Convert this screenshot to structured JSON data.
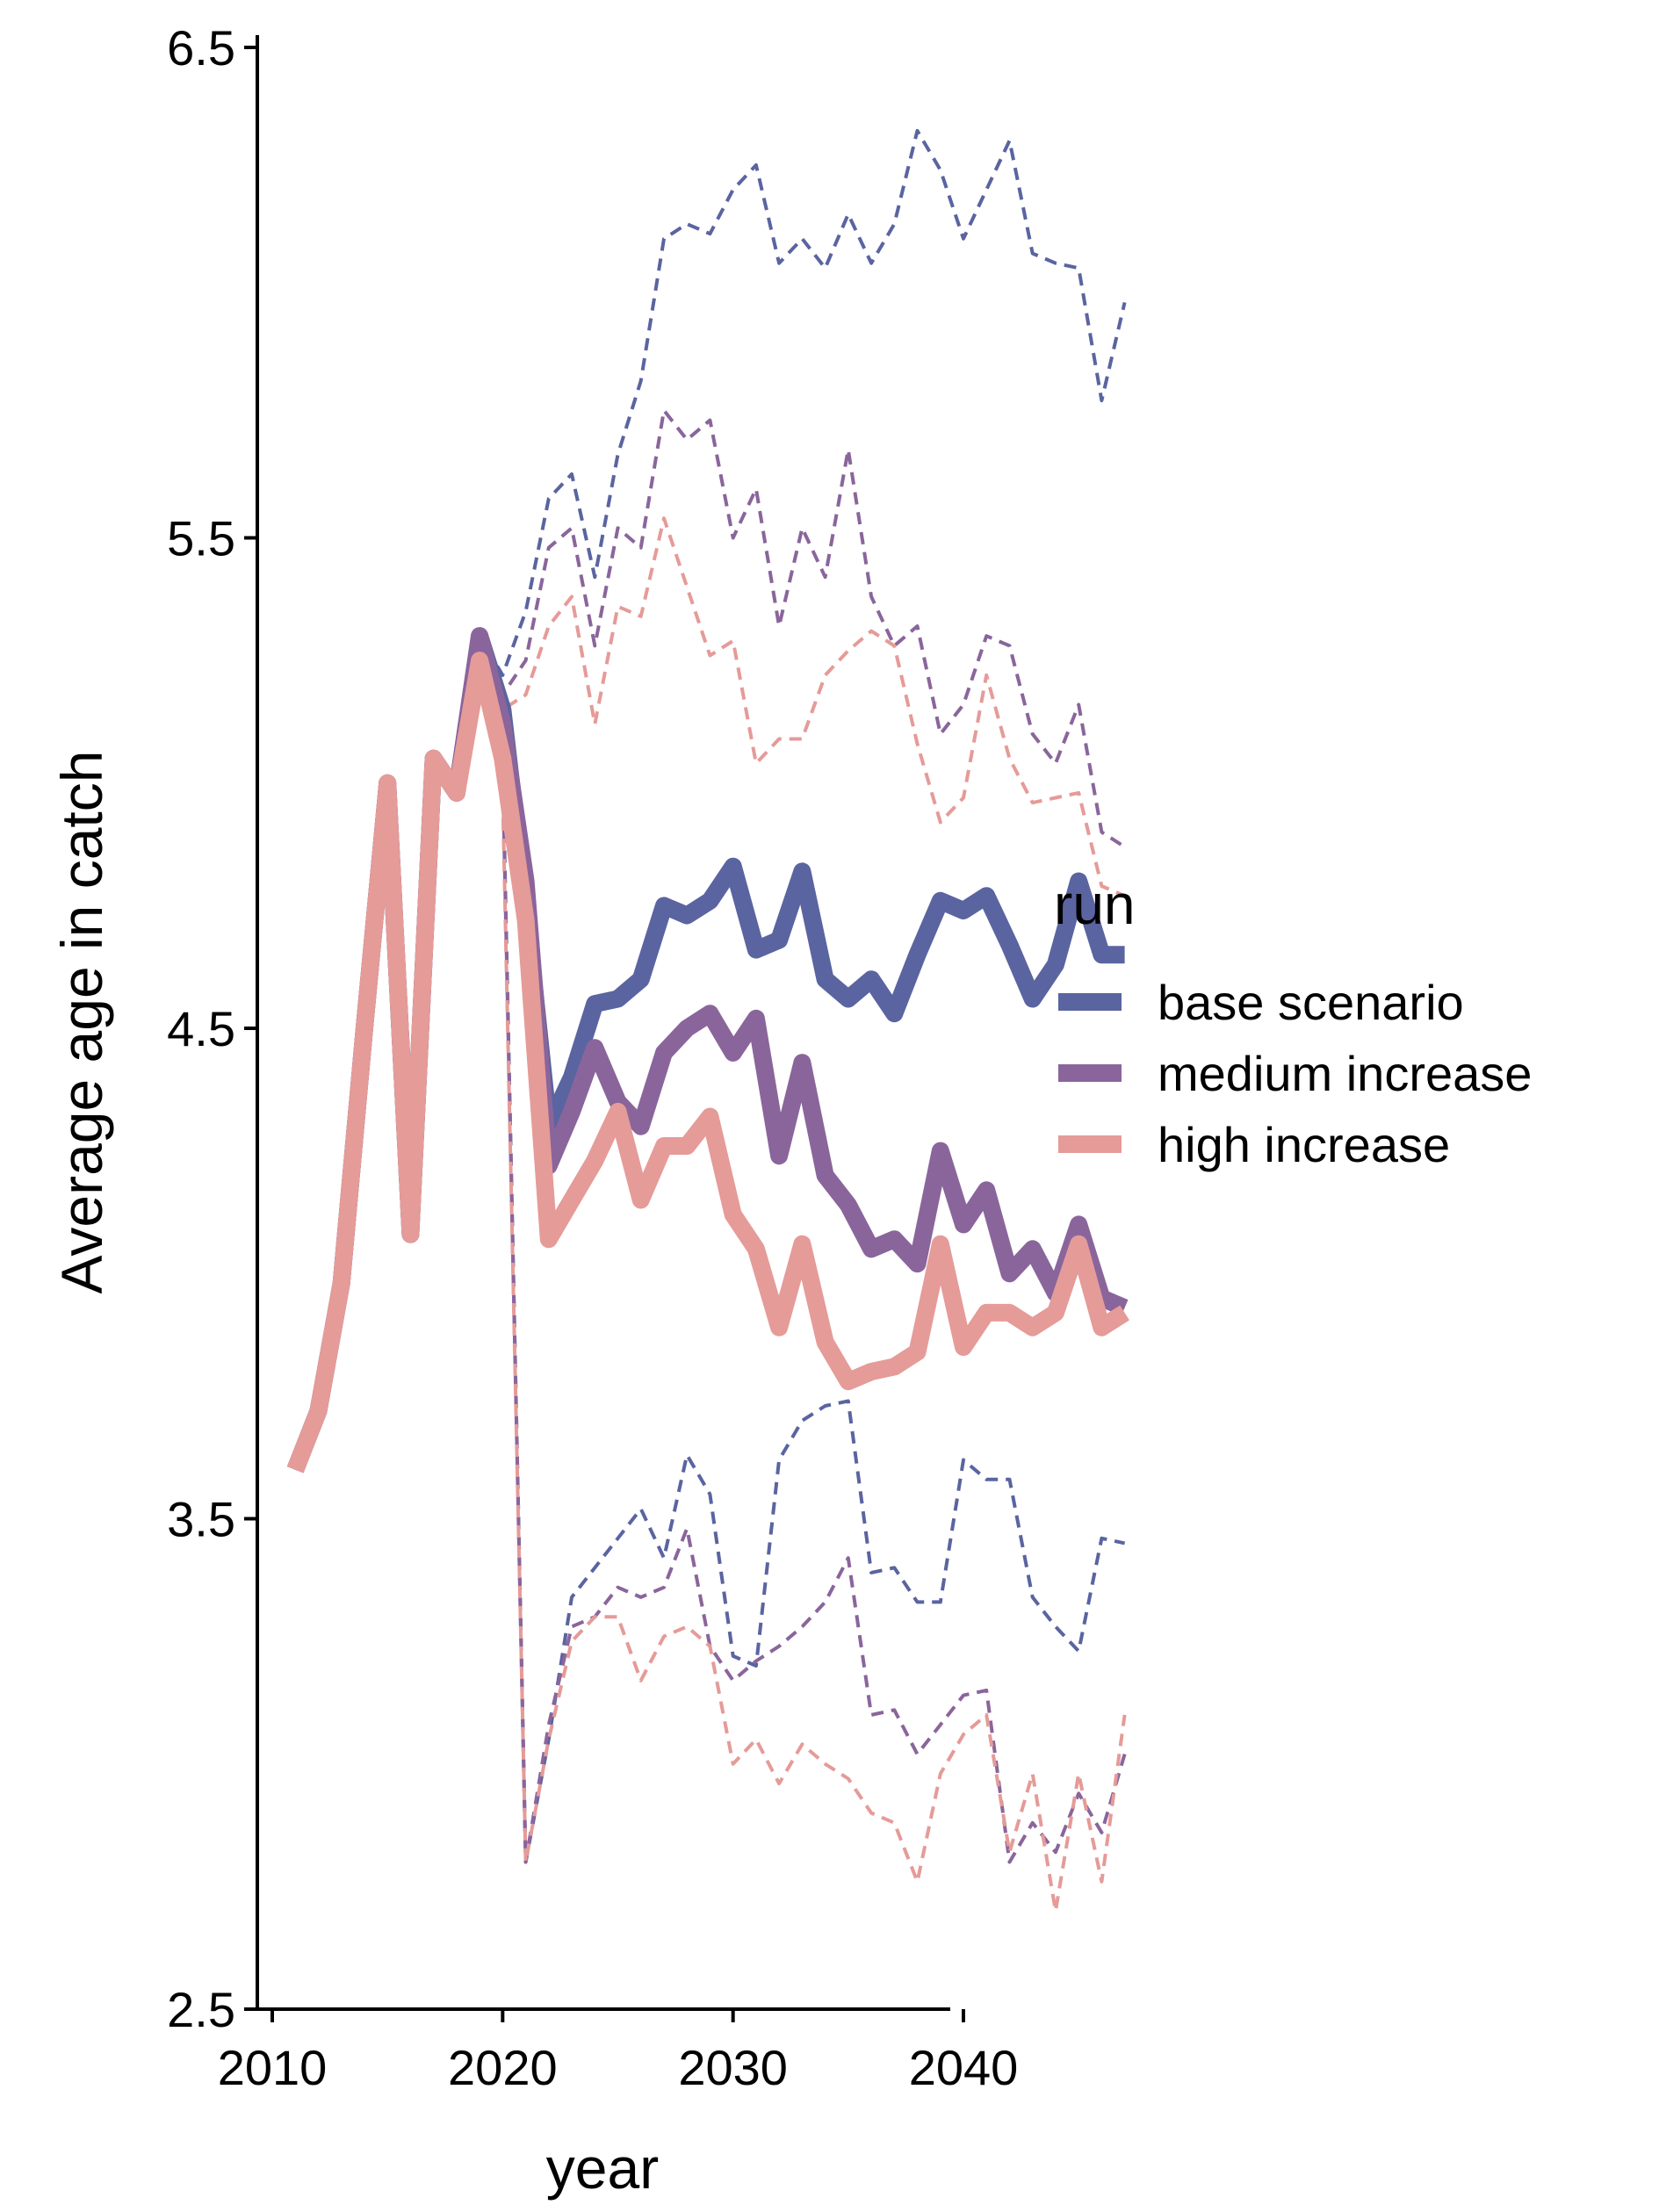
{
  "chart_data": {
    "type": "line",
    "xlabel": "year",
    "ylabel": "Average age in catch",
    "xlim": [
      2010,
      2048
    ],
    "ylim": [
      2.5,
      6.5
    ],
    "x_ticks": [
      2010,
      2020,
      2030,
      2040
    ],
    "y_ticks": [
      2.5,
      3.5,
      4.5,
      5.5,
      6.5
    ],
    "y_tick_labels": [
      "2.5",
      "3.5",
      "4.5",
      "5.5",
      "6.5"
    ],
    "grid": false,
    "legend": {
      "title": "run",
      "position": "right",
      "entries": [
        "base scenario",
        "medium increase",
        "high increase"
      ]
    },
    "series": [
      {
        "name": "base scenario",
        "color": "#5a64a0",
        "x": [
          2011,
          2012,
          2013,
          2014,
          2015,
          2016,
          2017,
          2018,
          2019,
          2020,
          2021,
          2022,
          2023,
          2024,
          2025,
          2026,
          2027,
          2028,
          2029,
          2030,
          2031,
          2032,
          2033,
          2034,
          2035,
          2036,
          2037,
          2038,
          2039,
          2040,
          2041,
          2042,
          2043,
          2044,
          2045,
          2046,
          2047
        ],
        "mean": [
          3.6,
          3.72,
          3.98,
          4.5,
          5.0,
          4.08,
          5.05,
          4.98,
          5.3,
          5.15,
          4.75,
          4.3,
          4.4,
          4.55,
          4.56,
          4.6,
          4.75,
          4.73,
          4.76,
          4.83,
          4.66,
          4.68,
          4.82,
          4.6,
          4.56,
          4.6,
          4.53,
          4.65,
          4.76,
          4.74,
          4.77,
          4.67,
          4.56,
          4.63,
          4.8,
          4.65,
          4.65
        ],
        "upper": [
          3.6,
          3.72,
          3.98,
          4.5,
          5.0,
          4.08,
          5.05,
          4.98,
          5.3,
          5.22,
          5.35,
          5.58,
          5.63,
          5.42,
          5.67,
          5.82,
          6.11,
          6.14,
          6.12,
          6.21,
          6.26,
          6.06,
          6.11,
          6.05,
          6.16,
          6.06,
          6.14,
          6.33,
          6.25,
          6.11,
          6.21,
          6.31,
          6.08,
          6.06,
          6.05,
          5.78,
          5.98
        ],
        "lower": [
          3.6,
          3.72,
          3.98,
          4.5,
          5.0,
          4.08,
          5.05,
          4.98,
          5.3,
          5.05,
          2.8,
          3.05,
          3.34,
          3.4,
          3.46,
          3.52,
          3.42,
          3.63,
          3.55,
          3.22,
          3.2,
          3.62,
          3.7,
          3.73,
          3.74,
          3.39,
          3.4,
          3.33,
          3.33,
          3.62,
          3.58,
          3.58,
          3.34,
          3.28,
          3.23,
          3.46,
          3.45
        ]
      },
      {
        "name": "medium increase",
        "color": "#8a659b",
        "x": [
          2011,
          2012,
          2013,
          2014,
          2015,
          2016,
          2017,
          2018,
          2019,
          2020,
          2021,
          2022,
          2023,
          2024,
          2025,
          2026,
          2027,
          2028,
          2029,
          2030,
          2031,
          2032,
          2033,
          2034,
          2035,
          2036,
          2037,
          2038,
          2039,
          2040,
          2041,
          2042,
          2043,
          2044,
          2045,
          2046,
          2047
        ],
        "mean": [
          3.6,
          3.72,
          3.98,
          4.5,
          5.0,
          4.08,
          5.05,
          4.98,
          5.3,
          5.12,
          4.8,
          4.22,
          4.33,
          4.46,
          4.35,
          4.3,
          4.45,
          4.5,
          4.53,
          4.45,
          4.52,
          4.24,
          4.43,
          4.2,
          4.14,
          4.05,
          4.07,
          4.02,
          4.25,
          4.1,
          4.17,
          4.0,
          4.05,
          3.96,
          4.1,
          3.95,
          3.93
        ],
        "upper": [
          3.6,
          3.72,
          3.98,
          4.5,
          5.0,
          4.08,
          5.05,
          4.98,
          5.3,
          5.18,
          5.25,
          5.48,
          5.52,
          5.28,
          5.52,
          5.48,
          5.76,
          5.7,
          5.74,
          5.5,
          5.6,
          5.32,
          5.52,
          5.42,
          5.68,
          5.38,
          5.28,
          5.32,
          5.1,
          5.16,
          5.3,
          5.28,
          5.1,
          5.04,
          5.16,
          4.9,
          4.87
        ],
        "lower": [
          3.6,
          3.72,
          3.98,
          4.5,
          5.0,
          4.08,
          5.05,
          4.98,
          5.3,
          5.03,
          2.8,
          3.08,
          3.28,
          3.3,
          3.36,
          3.34,
          3.36,
          3.48,
          3.24,
          3.17,
          3.21,
          3.24,
          3.28,
          3.33,
          3.42,
          3.1,
          3.11,
          3.02,
          3.08,
          3.14,
          3.15,
          2.8,
          2.88,
          2.82,
          2.94,
          2.86,
          3.02
        ]
      },
      {
        "name": "high increase",
        "color": "#e59b98",
        "x": [
          2011,
          2012,
          2013,
          2014,
          2015,
          2016,
          2017,
          2018,
          2019,
          2020,
          2021,
          2022,
          2023,
          2024,
          2025,
          2026,
          2027,
          2028,
          2029,
          2030,
          2031,
          2032,
          2033,
          2034,
          2035,
          2036,
          2037,
          2038,
          2039,
          2040,
          2041,
          2042,
          2043,
          2044,
          2045,
          2046,
          2047
        ],
        "mean": [
          3.6,
          3.72,
          3.98,
          4.5,
          5.0,
          4.08,
          5.05,
          4.98,
          5.25,
          5.05,
          4.72,
          4.07,
          4.15,
          4.23,
          4.33,
          4.15,
          4.26,
          4.26,
          4.32,
          4.12,
          4.05,
          3.89,
          4.06,
          3.86,
          3.78,
          3.8,
          3.81,
          3.84,
          4.06,
          3.85,
          3.92,
          3.92,
          3.89,
          3.92,
          4.06,
          3.89,
          3.92
        ],
        "upper": [
          3.6,
          3.72,
          3.98,
          4.5,
          5.0,
          4.08,
          5.05,
          4.98,
          5.25,
          5.15,
          5.18,
          5.32,
          5.38,
          5.12,
          5.36,
          5.34,
          5.54,
          5.4,
          5.26,
          5.29,
          5.04,
          5.09,
          5.09,
          5.22,
          5.27,
          5.31,
          5.28,
          5.08,
          4.92,
          4.97,
          5.22,
          5.05,
          4.96,
          4.97,
          4.98,
          4.79,
          4.77
        ],
        "lower": [
          3.6,
          3.72,
          3.98,
          4.5,
          5.0,
          4.08,
          5.05,
          4.98,
          5.25,
          4.98,
          2.8,
          3.05,
          3.25,
          3.3,
          3.3,
          3.17,
          3.26,
          3.28,
          3.24,
          3.0,
          3.05,
          2.96,
          3.04,
          3.0,
          2.97,
          2.9,
          2.88,
          2.76,
          2.98,
          3.06,
          3.1,
          2.82,
          2.98,
          2.7,
          2.98,
          2.76,
          3.1
        ]
      }
    ]
  }
}
